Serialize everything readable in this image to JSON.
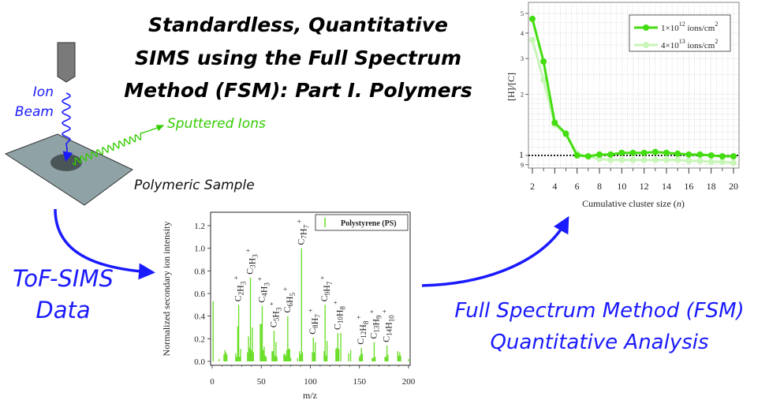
{
  "title": [
    "Standardless, Quantitative",
    "SIMS using the Full Spectrum",
    "Method (FSM): Part I. Polymers"
  ],
  "schematic": {
    "ion_beam_label": [
      "Ion",
      "Beam"
    ],
    "sputtered_label": "Sputtered Ions",
    "sample_label": "Polymeric Sample",
    "colors": {
      "ion_beam": "#1a1aff",
      "sputtered": "#33cc00",
      "sample": "#8fa3a6",
      "gun": "#7a7a7a"
    }
  },
  "flow": {
    "tof_label": [
      "ToF-SIMS",
      "Data"
    ],
    "fsm_label": [
      "Full Spectrum Method (FSM)",
      "Quantitative Analysis"
    ],
    "arrow_color": "#1a1aff"
  },
  "chart_data": [
    {
      "type": "bar",
      "name": "spectrum",
      "xlabel": "m/z",
      "ylabel": "Normalized secondary ion intensity",
      "xlim": [
        0,
        200
      ],
      "ylim": [
        0,
        1.3
      ],
      "xticks": [
        "0",
        "50",
        "100",
        "150",
        "200"
      ],
      "yticks": [
        "0.0",
        "0.2",
        "0.4",
        "0.6",
        "0.8",
        "1.0",
        "1.2"
      ],
      "legend": "Polystyrene (PS)",
      "legend_position": "top-right",
      "color": "#66dd22",
      "peaks": [
        [
          1,
          0.53
        ],
        [
          7,
          0.02
        ],
        [
          12,
          0.06
        ],
        [
          13,
          0.1
        ],
        [
          14,
          0.08
        ],
        [
          15,
          0.06
        ],
        [
          24,
          0.07
        ],
        [
          25,
          0.04
        ],
        [
          26,
          0.31
        ],
        [
          27,
          0.5
        ],
        [
          28,
          0.04
        ],
        [
          29,
          0.11
        ],
        [
          36,
          0.08
        ],
        [
          37,
          0.22
        ],
        [
          38,
          0.12
        ],
        [
          39,
          0.74
        ],
        [
          40,
          0.1
        ],
        [
          41,
          0.3
        ],
        [
          42,
          0.08
        ],
        [
          49,
          0.33
        ],
        [
          50,
          0.33
        ],
        [
          51,
          0.49
        ],
        [
          52,
          0.1
        ],
        [
          53,
          0.13
        ],
        [
          54,
          0.05
        ],
        [
          55,
          0.04
        ],
        [
          61,
          0.09
        ],
        [
          62,
          0.09
        ],
        [
          63,
          0.27
        ],
        [
          64,
          0.05
        ],
        [
          65,
          0.17
        ],
        [
          66,
          0.04
        ],
        [
          73,
          0.06
        ],
        [
          74,
          0.07
        ],
        [
          75,
          0.05
        ],
        [
          76,
          0.1
        ],
        [
          77,
          0.4
        ],
        [
          78,
          0.11
        ],
        [
          79,
          0.11
        ],
        [
          80,
          0.03
        ],
        [
          87,
          0.03
        ],
        [
          89,
          0.09
        ],
        [
          90,
          0.06
        ],
        [
          91,
          1.0
        ],
        [
          92,
          0.08
        ],
        [
          102,
          0.08
        ],
        [
          103,
          0.21
        ],
        [
          104,
          0.08
        ],
        [
          105,
          0.17
        ],
        [
          114,
          0.09
        ],
        [
          115,
          0.5
        ],
        [
          116,
          0.05
        ],
        [
          117,
          0.18
        ],
        [
          126,
          0.11
        ],
        [
          127,
          0.12
        ],
        [
          128,
          0.25
        ],
        [
          129,
          0.11
        ],
        [
          131,
          0.25
        ],
        [
          139,
          0.07
        ],
        [
          141,
          0.1
        ],
        [
          150,
          0.04
        ],
        [
          151,
          0.06
        ],
        [
          152,
          0.12
        ],
        [
          153,
          0.07
        ],
        [
          163,
          0.03
        ],
        [
          164,
          0.03
        ],
        [
          165,
          0.17
        ],
        [
          166,
          0.04
        ],
        [
          176,
          0.04
        ],
        [
          177,
          0.04
        ],
        [
          178,
          0.14
        ],
        [
          179,
          0.06
        ],
        [
          189,
          0.09
        ],
        [
          190,
          0.05
        ],
        [
          191,
          0.08
        ],
        [
          192,
          0.05
        ],
        [
          200,
          0.02
        ]
      ],
      "annotations": [
        {
          "label": "C2H3+",
          "mz": 27
        },
        {
          "label": "C3H3+",
          "mz": 39
        },
        {
          "label": "C4H3+",
          "mz": 51
        },
        {
          "label": "C5H3+",
          "mz": 63
        },
        {
          "label": "C6H5+",
          "mz": 77
        },
        {
          "label": "C7H7+",
          "mz": 91
        },
        {
          "label": "C8H7+",
          "mz": 103
        },
        {
          "label": "C9H7+",
          "mz": 115
        },
        {
          "label": "C10H8+",
          "mz": 128
        },
        {
          "label": "C12H8+",
          "mz": 152
        },
        {
          "label": "C13H9+",
          "mz": 165
        },
        {
          "label": "C14H10+",
          "mz": 178
        }
      ]
    },
    {
      "type": "line",
      "name": "hc-ratio",
      "xlabel": "Cumulative cluster size (",
      "xlabel_var": "n",
      "xlabel_end": ")",
      "ylabel": "[H]/[C]",
      "yscale": "log",
      "xlim": [
        2,
        20.2
      ],
      "ylim": [
        0.86,
        5.1
      ],
      "xticks": [
        "2",
        "4",
        "6",
        "8",
        "10",
        "12",
        "14",
        "16",
        "18",
        "20"
      ],
      "yticks": [
        {
          "v": 5,
          "t": "5"
        },
        {
          "v": 4,
          "t": "4"
        },
        {
          "v": 3,
          "t": "3"
        },
        {
          "v": 2,
          "t": "2"
        },
        {
          "v": 1,
          "t": "1"
        },
        {
          "v": 0.9,
          "t": "9"
        }
      ],
      "reference_line": 1,
      "grid": true,
      "legend_position": "top-right",
      "x": [
        2,
        3,
        4,
        5,
        6,
        7,
        8,
        9,
        10,
        11,
        12,
        13,
        14,
        15,
        16,
        17,
        18,
        19,
        20
      ],
      "series": [
        {
          "name_base": "1×10",
          "name_exp": "12",
          "name_unit": "ions/cm",
          "name_unit_exp": "2",
          "color": "#44dd11",
          "values": [
            4.7,
            2.9,
            1.45,
            1.28,
            1.0,
            0.99,
            1.01,
            1.01,
            1.03,
            1.03,
            1.03,
            1.04,
            1.03,
            1.02,
            1.01,
            1.01,
            1.0,
            0.99,
            0.99
          ]
        },
        {
          "name_base": "4×10",
          "name_exp": "13",
          "name_unit": "ions/cm",
          "name_unit_exp": "2",
          "color": "#c8f5b8",
          "values": [
            3.7,
            2.35,
            1.42,
            1.27,
            1.02,
            0.99,
            0.96,
            0.95,
            0.95,
            0.95,
            0.95,
            0.95,
            0.95,
            0.95,
            0.94,
            0.94,
            0.93,
            0.93,
            0.92
          ]
        }
      ]
    }
  ]
}
